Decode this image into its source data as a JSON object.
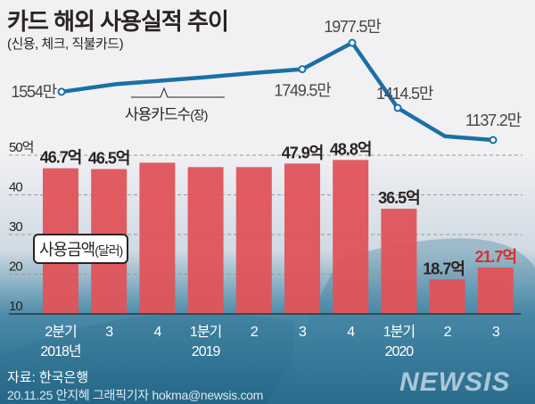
{
  "title": "카드 해외 사용실적 추이",
  "subtitle": "(신용, 체크, 직불카드)",
  "source": "자료: 한국은행",
  "credit": "20.11.25 안지혜 그래픽기자 hokma@newsis.com",
  "logo": "NEWSIS",
  "colors": {
    "bar": "#e0535a",
    "line": "#1b6fa6",
    "text": "#2a2423",
    "highlight": "#d8302c"
  },
  "chart_data": [
    {
      "type": "bar",
      "name": "사용금액",
      "legend": "사용금액",
      "legend_unit": "(달러)",
      "categories": [
        "2분기",
        "3",
        "4",
        "1분기",
        "2",
        "3",
        "4",
        "1분기",
        "2",
        "3"
      ],
      "year_labels": [
        {
          "index": 0,
          "label": "2018년"
        },
        {
          "index": 3,
          "label": "2019"
        },
        {
          "index": 7,
          "label": "2020"
        }
      ],
      "values": [
        46.7,
        46.5,
        48.1,
        47.0,
        47.0,
        47.9,
        48.8,
        36.5,
        18.7,
        21.7
      ],
      "data_labels": [
        "46.7억",
        "46.5억",
        "",
        "",
        "",
        "47.9억",
        "48.8억",
        "36.5억",
        "18.7억",
        "21.7억"
      ],
      "highlight_index": 9,
      "yticks": [
        "50억",
        "40",
        "30",
        "20",
        "10"
      ],
      "ytick_values": [
        50,
        40,
        30,
        20,
        10
      ],
      "ylim": [
        10,
        50
      ],
      "grid": true
    },
    {
      "type": "line",
      "name": "사용카드수",
      "legend": "사용카드수",
      "legend_unit": "(장)",
      "values": [
        1554,
        1620,
        1650,
        1680,
        1720,
        1749.5,
        1977.5,
        1414.5,
        1170,
        1137.2
      ],
      "data_labels": [
        "1554만",
        "",
        "",
        "",
        "",
        "1749.5만",
        "1977.5만",
        "1414.5만",
        "",
        "1137.2만"
      ],
      "marker_indices": [
        0,
        5,
        6,
        7,
        9
      ]
    }
  ]
}
